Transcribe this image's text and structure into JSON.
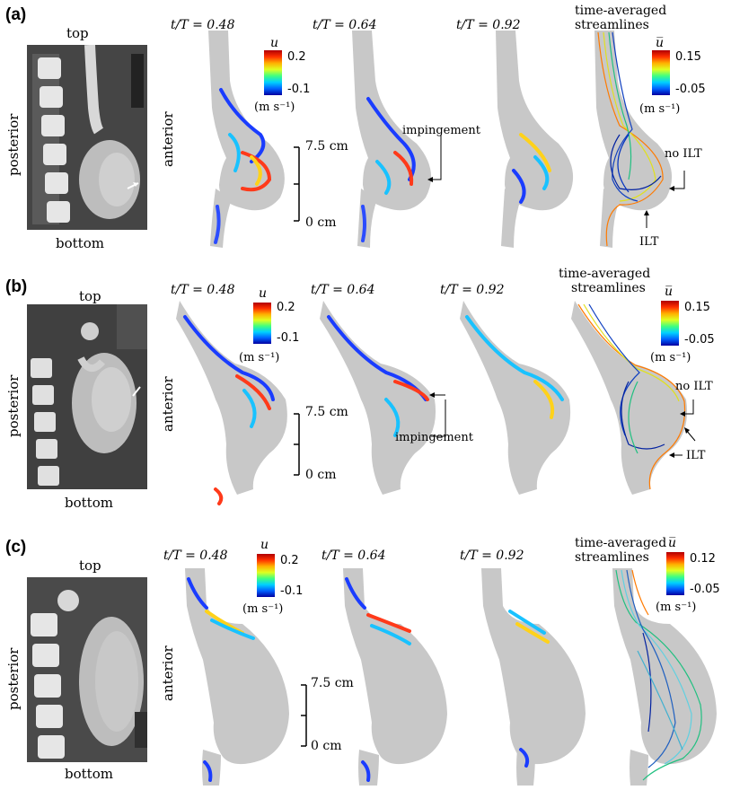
{
  "panels": [
    {
      "tag": "(a)",
      "ct": {
        "top": "top",
        "bottom": "bottom",
        "left": "posterior",
        "right": "anterior"
      },
      "times": [
        "t/T = 0.48",
        "t/T = 0.64",
        "t/T = 0.92"
      ],
      "streamlines_title": [
        "time-averaged",
        "streamlines"
      ],
      "colorbar_u": {
        "symbol": "u",
        "max": "0.2",
        "min": "-0.1",
        "units": "(m s⁻¹)"
      },
      "colorbar_ubar": {
        "symbol": "u̅",
        "max": "0.15",
        "min": "-0.05",
        "units": "(m s⁻¹)"
      },
      "scale": {
        "top": "7.5 cm",
        "bottom": "0 cm"
      },
      "annotations": {
        "impingement": "impingement",
        "no_ilt": "no ILT",
        "ilt": "ILT"
      }
    },
    {
      "tag": "(b)",
      "ct": {
        "top": "top",
        "bottom": "bottom",
        "left": "posterior",
        "right": "anterior"
      },
      "times": [
        "t/T = 0.48",
        "t/T = 0.64",
        "t/T = 0.92"
      ],
      "streamlines_title": [
        "time-averaged",
        "streamlines"
      ],
      "colorbar_u": {
        "symbol": "u",
        "max": "0.2",
        "min": "-0.1",
        "units": "(m s⁻¹)"
      },
      "colorbar_ubar": {
        "symbol": "u̅",
        "max": "0.15",
        "min": "-0.05",
        "units": "(m s⁻¹)"
      },
      "scale": {
        "top": "7.5 cm",
        "bottom": "0 cm"
      },
      "annotations": {
        "impingement": "impingement",
        "no_ilt": "no ILT",
        "ilt": "ILT"
      }
    },
    {
      "tag": "(c)",
      "ct": {
        "top": "top",
        "bottom": "bottom",
        "left": "posterior",
        "right": "anterior"
      },
      "times": [
        "t/T = 0.48",
        "t/T = 0.64",
        "t/T = 0.92"
      ],
      "streamlines_title": [
        "time-averaged",
        "streamlines"
      ],
      "colorbar_u": {
        "symbol": "u",
        "max": "0.2",
        "min": "-0.1",
        "units": "(m s⁻¹)"
      },
      "colorbar_ubar": {
        "symbol": "u̅",
        "max": "0.12",
        "min": "-0.05",
        "units": "(m s⁻¹)"
      },
      "scale": {
        "top": "7.5 cm",
        "bottom": "0 cm"
      }
    }
  ],
  "colors": {
    "vessel": "#c8c8c8",
    "ct_bg": "#3a3a3a",
    "ct_bone": "#e6e6e6",
    "ct_aneurysm": "#bdbdbd"
  }
}
